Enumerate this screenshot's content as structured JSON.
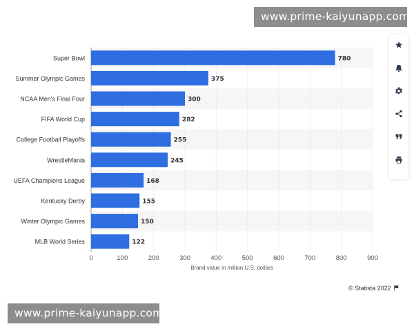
{
  "watermark": {
    "top": "www.prime-kaiyunapp.com",
    "bottom": "www.prime-kaiyunapp.com"
  },
  "chart_data": {
    "type": "bar",
    "orientation": "horizontal",
    "categories": [
      "Super Bowl",
      "Summer Olympic Games",
      "NCAA Men's Final Four",
      "FIFA World Cup",
      "College Football Playoffs",
      "WrestleMania",
      "UEFA Champions League",
      "Kentucky Derby",
      "Winter Olympic Games",
      "MLB World Series"
    ],
    "values": [
      780,
      375,
      300,
      282,
      255,
      245,
      168,
      155,
      150,
      122
    ],
    "xlabel": "Brand value in million U.S. dollars",
    "xlim": [
      0,
      900
    ],
    "xticks": [
      0,
      100,
      200,
      300,
      400,
      500,
      600,
      700,
      800,
      900
    ],
    "bar_color": "#2e6ee0",
    "grid": true,
    "data_labels": true
  },
  "toolbar": {
    "buttons": [
      {
        "name": "star-icon"
      },
      {
        "name": "bell-icon"
      },
      {
        "name": "gear-icon"
      },
      {
        "name": "share-icon"
      },
      {
        "name": "quote-icon"
      },
      {
        "name": "print-icon"
      }
    ]
  },
  "credit": {
    "text": "© Statista 2022",
    "icon": "flag-icon"
  }
}
